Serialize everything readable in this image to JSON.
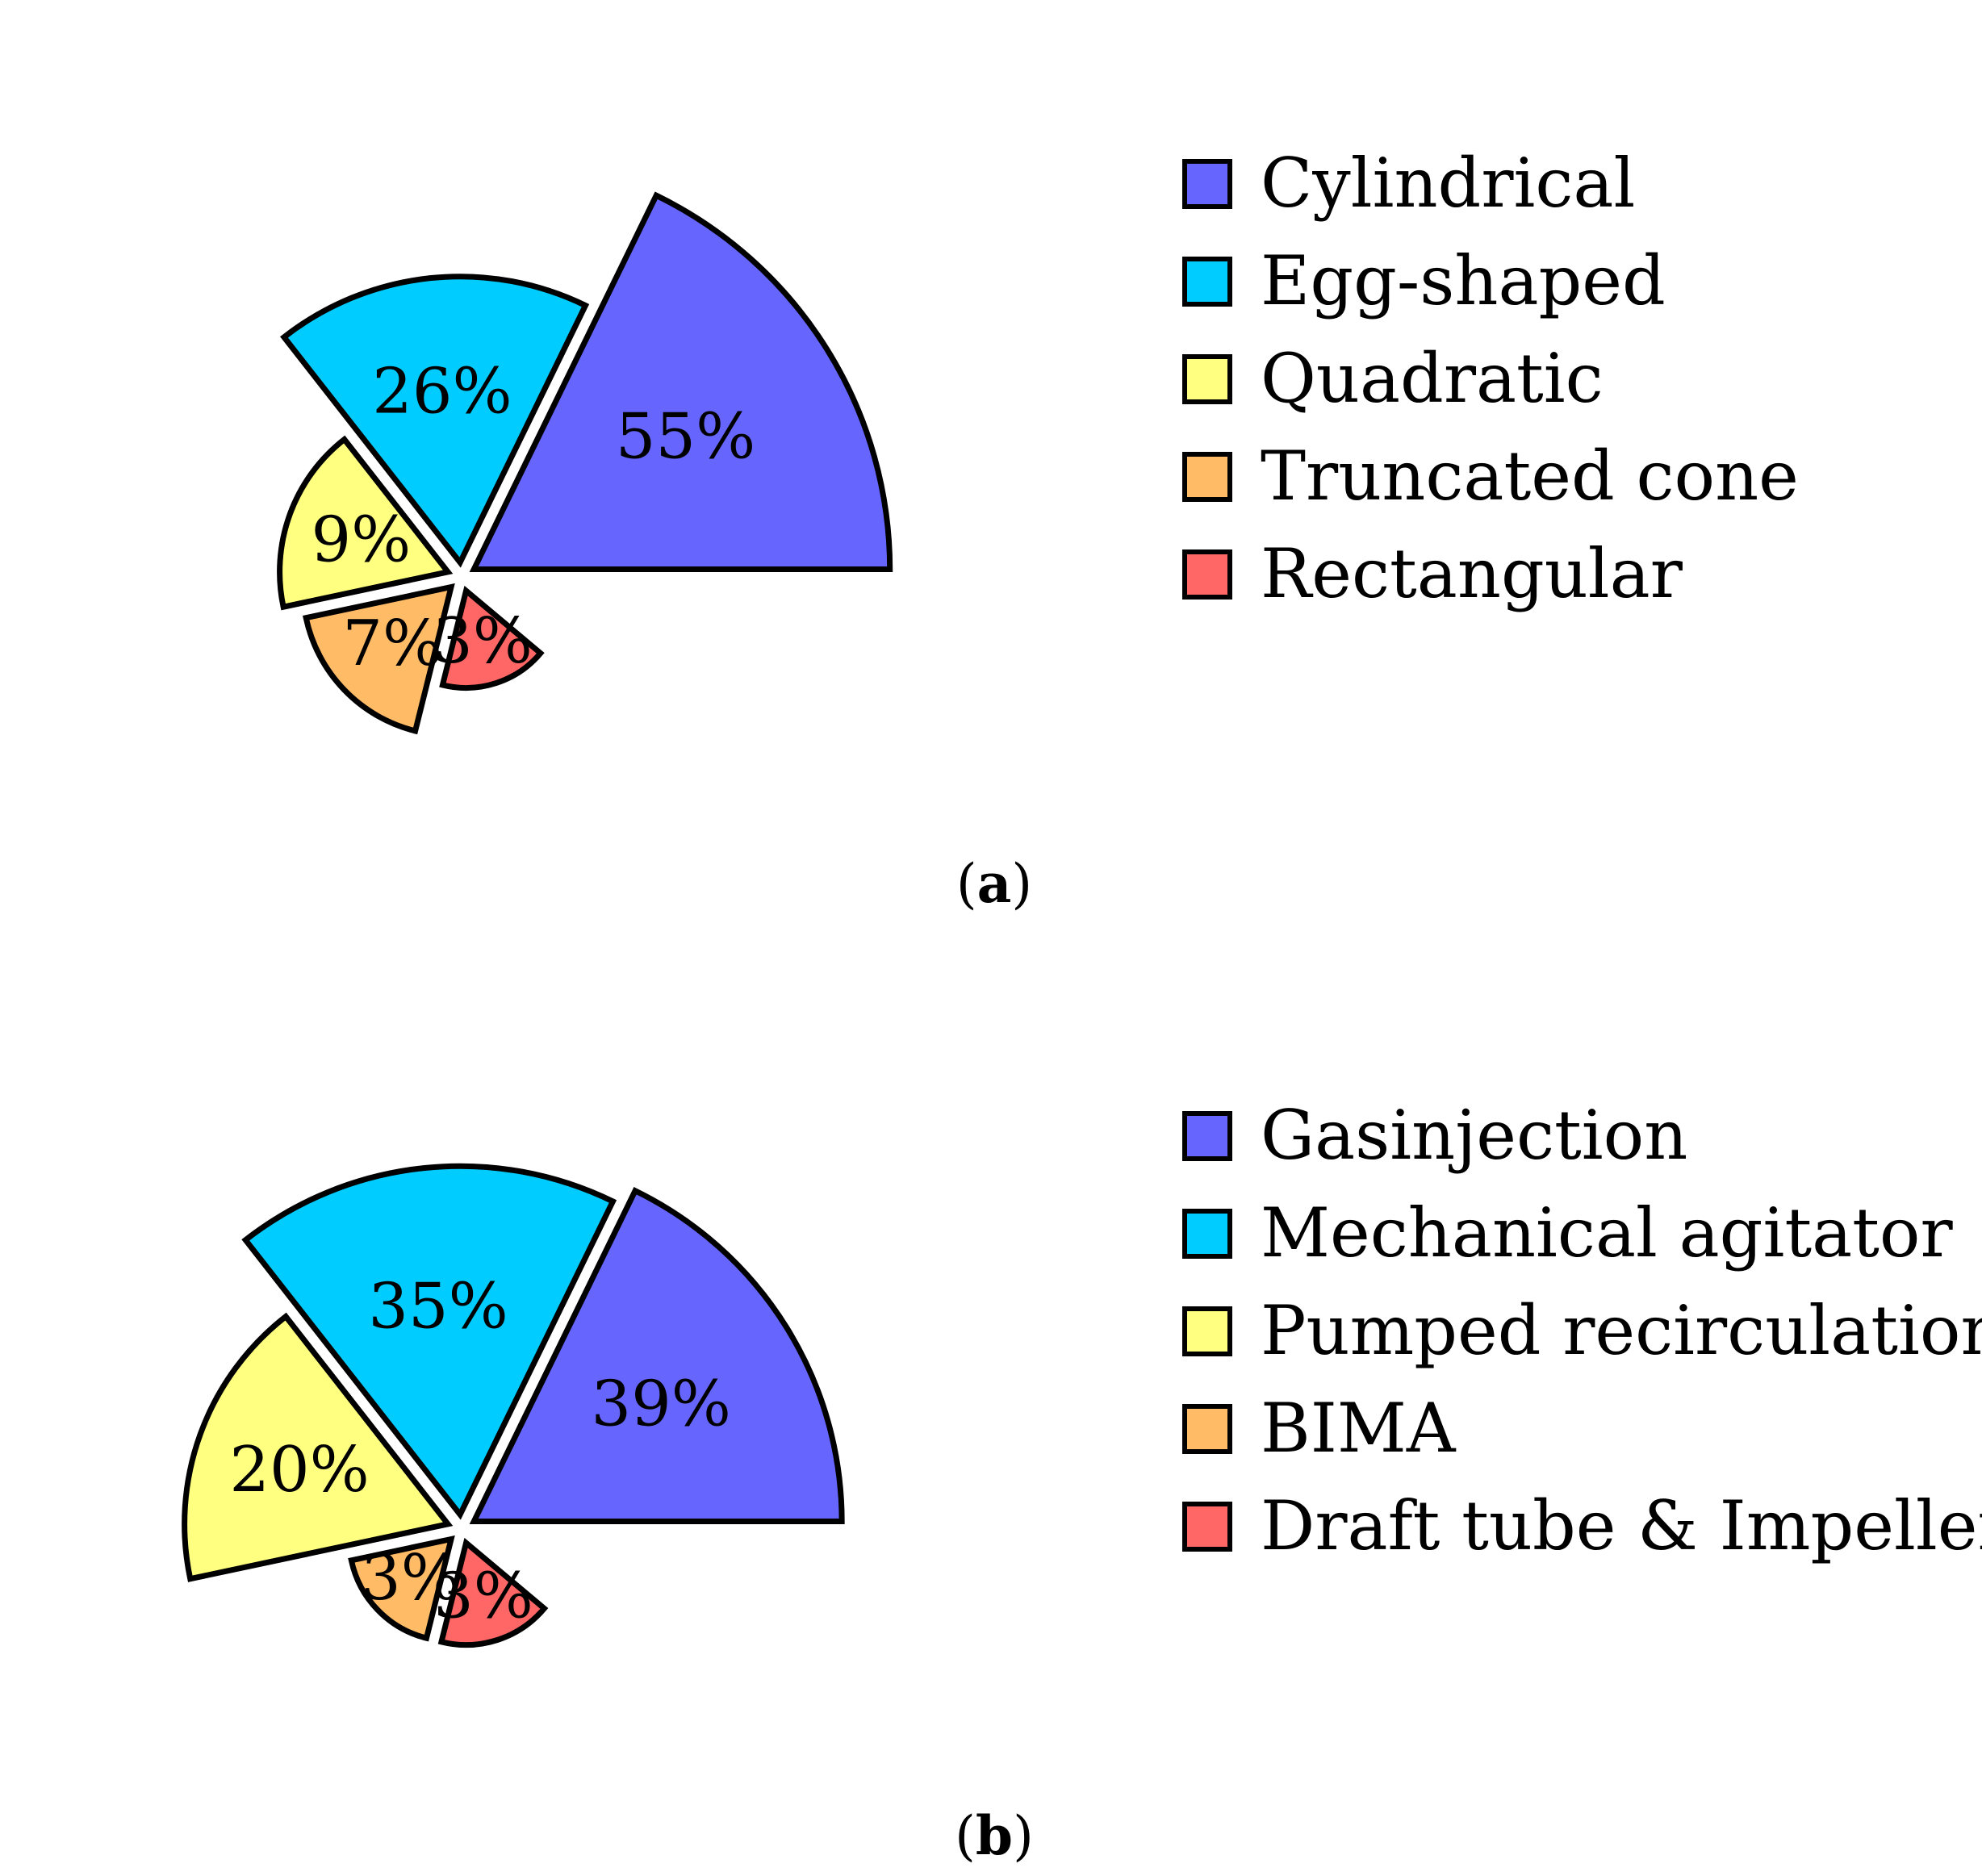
{
  "chart_data": [
    {
      "type": "pie",
      "variant": "rose (radius proportional to share)",
      "caption": "a",
      "categories": [
        "Cylindrical",
        "Egg-shaped",
        "Quadratic",
        "Truncated cone",
        "Rectangular"
      ],
      "values": [
        55,
        26,
        9,
        7,
        3
      ],
      "labels": [
        "55%",
        "26%",
        "9%",
        "7%",
        "3%"
      ],
      "legend_position": "right",
      "colors": [
        "#6666ff",
        "#00ccff",
        "#ffff80",
        "#ffbb66",
        "#ff6666"
      ]
    },
    {
      "type": "pie",
      "variant": "rose (radius proportional to share)",
      "caption": "b",
      "categories": [
        "Gasinjection",
        "Mechanical agitator",
        "Pumped recirculation",
        "BIMA",
        "Draft tube & Impeller"
      ],
      "values": [
        39,
        35,
        20,
        3,
        3
      ],
      "labels": [
        "39%",
        "35%",
        "20%",
        "3%",
        "3%"
      ],
      "legend_position": "right",
      "colors": [
        "#6666ff",
        "#00ccff",
        "#ffff80",
        "#ffbb66",
        "#ff6666"
      ]
    }
  ]
}
